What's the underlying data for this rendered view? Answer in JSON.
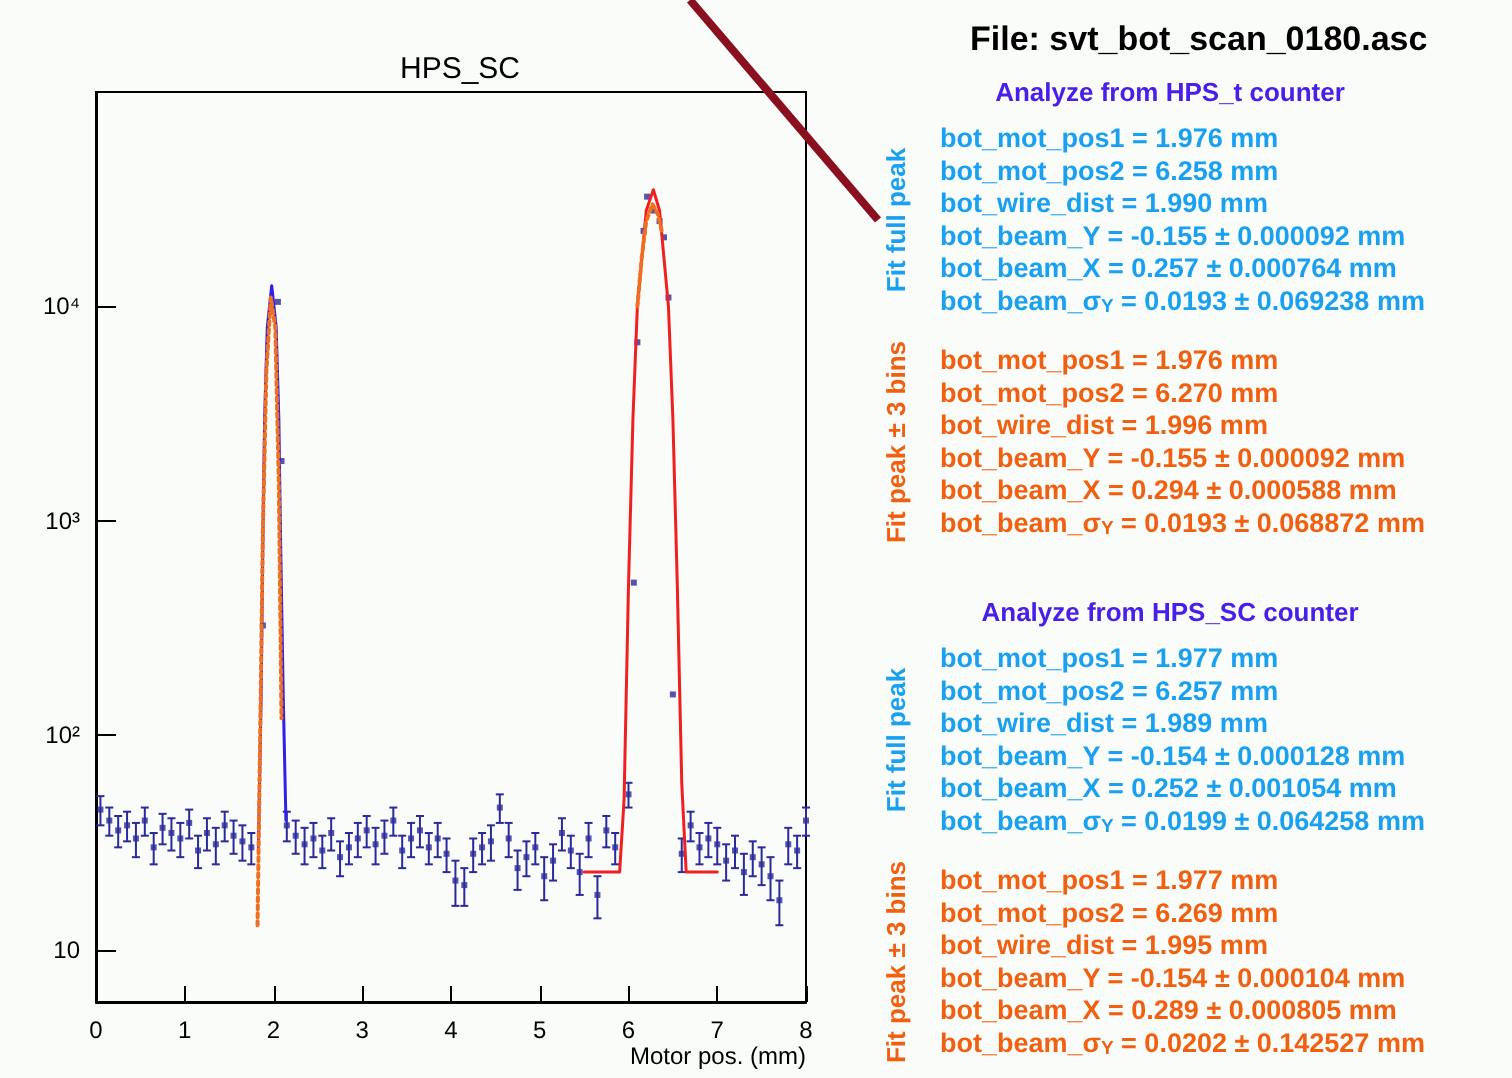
{
  "chart_data": {
    "type": "scatter",
    "title": "HPS_SC",
    "xlabel": "Motor pos. (mm)",
    "xlim": [
      0,
      8
    ],
    "xticks": [
      0,
      1,
      2,
      3,
      4,
      5,
      6,
      7,
      8
    ],
    "ylim": [
      5.7,
      100000
    ],
    "log": "y",
    "yticks": [
      10,
      {
        "value": 100,
        "label": "10²"
      },
      {
        "value": 1000,
        "label": "10³"
      },
      {
        "value": 10000,
        "label": "10⁴"
      }
    ],
    "grid": false,
    "series": [
      {
        "type": "scatter",
        "marker": "square",
        "color": "#2a2a9c",
        "x": [
          0.05,
          0.15,
          0.25,
          0.35,
          0.45,
          0.55,
          0.65,
          0.75,
          0.85,
          0.95,
          1.05,
          1.15,
          1.25,
          1.35,
          1.45,
          1.55,
          1.65,
          1.75,
          1.88,
          2.05,
          2.09,
          2.15,
          2.25,
          2.35,
          2.45,
          2.55,
          2.65,
          2.75,
          2.85,
          2.95,
          3.05,
          3.15,
          3.25,
          3.35,
          3.45,
          3.55,
          3.65,
          3.75,
          3.85,
          3.95,
          4.05,
          4.15,
          4.25,
          4.35,
          4.45,
          4.55,
          4.65,
          4.75,
          4.85,
          4.95,
          5.05,
          5.15,
          5.25,
          5.35,
          5.45,
          5.55,
          5.65,
          5.75,
          5.85,
          6.0,
          6.06,
          6.1,
          6.17,
          6.21,
          6.28,
          6.35,
          6.4,
          6.45,
          6.5,
          6.6,
          6.7,
          6.8,
          6.9,
          7.0,
          7.1,
          7.2,
          7.3,
          7.4,
          7.5,
          7.6,
          7.7,
          7.8,
          7.9,
          8.0
        ],
        "values": [
          45,
          40,
          36,
          38,
          33,
          40,
          30,
          37,
          35,
          33,
          39,
          29,
          35,
          31,
          38,
          34,
          32,
          30,
          325,
          10500,
          1900,
          38,
          34,
          31,
          33,
          29,
          35,
          27,
          30,
          33,
          36,
          31,
          34,
          40,
          29,
          33,
          36,
          30,
          33,
          28,
          21,
          20,
          28,
          30,
          32,
          46,
          33,
          24,
          27,
          30,
          22,
          26,
          35,
          29,
          23,
          33,
          18,
          36,
          30,
          53,
          515,
          6800,
          22500,
          32500,
          28000,
          25000,
          21000,
          11000,
          155,
          28,
          38,
          30,
          33,
          31,
          26,
          29,
          23,
          27,
          25,
          22,
          17,
          31,
          29,
          40
        ],
        "errors": [
          7,
          6,
          6,
          6,
          6,
          6,
          5,
          6,
          6,
          6,
          6,
          5,
          6,
          6,
          6,
          6,
          6,
          5,
          null,
          null,
          null,
          6,
          6,
          6,
          6,
          5,
          6,
          5,
          5,
          6,
          6,
          6,
          6,
          6,
          5,
          6,
          6,
          5,
          6,
          5,
          5,
          4,
          5,
          5,
          6,
          7,
          6,
          5,
          5,
          5,
          5,
          5,
          6,
          5,
          5,
          6,
          4,
          6,
          5,
          7,
          null,
          null,
          null,
          null,
          null,
          null,
          null,
          null,
          null,
          5,
          6,
          5,
          6,
          6,
          5,
          5,
          5,
          5,
          5,
          5,
          4,
          6,
          5,
          6
        ]
      },
      {
        "type": "line",
        "color": "#3020e8",
        "line_style": "solid",
        "x": [
          1.83,
          1.86,
          1.88,
          1.9,
          1.93,
          1.98,
          2.03,
          2.06,
          2.08,
          2.11,
          2.14
        ],
        "values": [
          30,
          150,
          800,
          3000,
          8000,
          12500,
          8000,
          3000,
          800,
          150,
          40
        ]
      },
      {
        "type": "line",
        "color": "#f02020",
        "line_style": "solid",
        "x": [
          5.5,
          5.9,
          5.95,
          6.0,
          6.05,
          6.1,
          6.2,
          6.28,
          6.35,
          6.45,
          6.5,
          6.55,
          6.6,
          6.65,
          7.0
        ],
        "values": [
          23,
          23,
          50,
          500,
          3000,
          10000,
          28000,
          35000,
          28000,
          10000,
          3000,
          500,
          60,
          23,
          23
        ]
      },
      {
        "type": "line",
        "color": "#f07020",
        "line_style": "dotted",
        "x": [
          1.82,
          1.85,
          1.88,
          1.92,
          1.97,
          2.02,
          2.06,
          2.09
        ],
        "values": [
          13,
          100,
          900,
          5000,
          11000,
          8000,
          1500,
          120
        ]
      },
      {
        "type": "line",
        "color": "#f07020",
        "line_style": "dotted",
        "x": [
          6.1,
          6.15,
          6.2,
          6.27,
          6.33,
          6.38
        ],
        "values": [
          10000,
          17000,
          25000,
          30000,
          27000,
          22000
        ]
      }
    ],
    "annotations": [
      "File: svt_bot_scan_0180.asc",
      "Analyze from HPS_t counter",
      "bot_mot_pos1 = 1.976 mm",
      "bot_mot_pos2 = 6.258 mm",
      "bot_wire_dist = 1.990 mm",
      "bot_beam_Y = -0.155 ± 0.000092 mm",
      "bot_beam_X = 0.257 ± 0.000764 mm",
      "bot_beam_σ$_{Y}$ = 0.0193 ± 0.069238 mm",
      "bot_mot_pos1 = 1.976 mm",
      "bot_mot_pos2 = 6.270 mm",
      "bot_wire_dist = 1.996 mm",
      "bot_beam_Y = -0.155 ± 0.000092 mm",
      "bot_beam_X = 0.294 ± 0.000588 mm",
      "bot_beam_σ$_{Y}$ = 0.0193 ± 0.068872 mm",
      "Fit full peak",
      "Fit peak ± 3 bins",
      "Analyze from HPS_SC counter",
      "bot_mot_pos1 = 1.977 mm",
      "bot_mot_pos2 = 6.257 mm",
      "bot_wire_dist = 1.989 mm",
      "bot_beam_Y = -0.154 ± 0.000128 mm",
      "bot_beam_X = 0.252 ± 0.001054 mm",
      "bot_beam_σ$_{Y}$ = 0.0199 ± 0.064258 mm",
      "bot_mot_pos1 = 1.977 mm",
      "bot_mot_pos2 = 6.269 mm",
      "bot_wire_dist = 1.995 mm",
      "bot_beam_Y = -0.154 ± 0.000104 mm",
      "bot_beam_X = 0.289 ± 0.000805 mm",
      "bot_beam_σ$_{Y}$ = 0.0202 ± 0.142527 mm",
      "Fit full peak",
      "Fit peak ± 3 bins"
    ]
  }
}
